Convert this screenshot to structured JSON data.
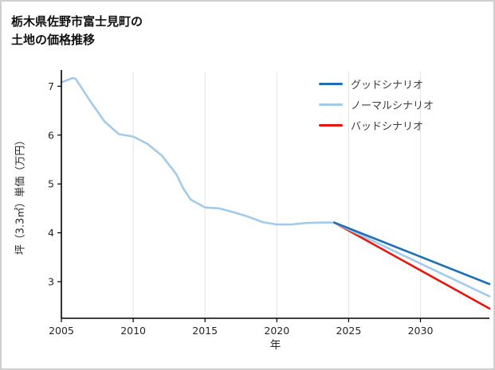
{
  "chart_data": {
    "type": "line",
    "title": "栃木県佐野市富士見町の土地の価格推移",
    "title_lines": [
      "栃木県佐野市富士見町の",
      "土地の価格推移"
    ],
    "xlabel": "年",
    "ylabel": "坪（3.3㎡）単価（万円）",
    "x_ticks": [
      2005,
      2010,
      2015,
      2020,
      2025,
      2030
    ],
    "y_ticks": [
      3,
      4,
      5,
      6,
      7
    ],
    "xlim": [
      2005,
      2034.8
    ],
    "ylim": [
      2.25,
      7.3
    ],
    "grid": "vertical",
    "legend_position": "upper-right",
    "series": [
      {
        "name": "",
        "color": "#a3cbe9",
        "width": 2.6,
        "in_legend": false,
        "x": [
          2005,
          2005.8,
          2006,
          2007,
          2008,
          2009,
          2010,
          2011,
          2012,
          2013,
          2013.5,
          2014,
          2015,
          2016,
          2017,
          2018,
          2019,
          2020,
          2021,
          2022,
          2023,
          2024
        ],
        "y": [
          7.08,
          7.17,
          7.15,
          6.7,
          6.28,
          6.02,
          5.97,
          5.82,
          5.58,
          5.2,
          4.9,
          4.68,
          4.52,
          4.5,
          4.42,
          4.33,
          4.22,
          4.17,
          4.17,
          4.2,
          4.21,
          4.21
        ]
      },
      {
        "name": "グッドシナリオ",
        "color": "#1f6fb4",
        "width": 2.6,
        "in_legend": true,
        "x": [
          2024,
          2034.8
        ],
        "y": [
          4.21,
          2.95
        ]
      },
      {
        "name": "ノーマルシナリオ",
        "color": "#a3cbe9",
        "width": 2.6,
        "in_legend": true,
        "x": [
          2024,
          2034.8
        ],
        "y": [
          4.21,
          2.7
        ]
      },
      {
        "name": "バッドシナリオ",
        "color": "#e8150d",
        "width": 2.6,
        "in_legend": true,
        "x": [
          2024,
          2034.8
        ],
        "y": [
          4.21,
          2.45
        ]
      }
    ]
  }
}
